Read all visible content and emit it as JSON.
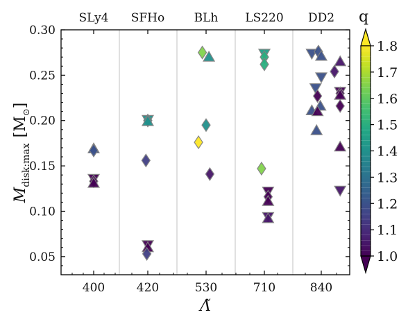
{
  "chart_data": {
    "type": "scatter",
    "top_labels": [
      "SLy4",
      "SFHo",
      "BLh",
      "LS220",
      "DD2"
    ],
    "xtick_labels": [
      "400",
      "420",
      "530",
      "710",
      "840"
    ],
    "xlabel": "Λ̃",
    "ylabel_main": "M",
    "ylabel_sub": "disk:max",
    "ylabel_unit_open": "[M",
    "ylabel_unit_sub": "⊙",
    "ylabel_unit_close": "]",
    "ylim": [
      0.03,
      0.3
    ],
    "yticks": [
      "0.05",
      "0.10",
      "0.15",
      "0.20",
      "0.25",
      "0.30"
    ],
    "colorbar": {
      "label": "q",
      "range": [
        1.0,
        1.8
      ],
      "ticks": [
        "1.0",
        "1.1",
        "1.2",
        "1.3",
        "1.4",
        "1.5",
        "1.6",
        "1.7",
        "1.8"
      ],
      "colormap": "viridis",
      "extend": "both"
    },
    "grid": false,
    "points": [
      {
        "eos": "SLy4",
        "offset": 0.0,
        "y": 0.169,
        "q": 1.2,
        "marker": "triangle-up"
      },
      {
        "eos": "SLy4",
        "offset": 0.0,
        "y": 0.167,
        "q": 1.2,
        "marker": "diamond"
      },
      {
        "eos": "SLy4",
        "offset": 0.0,
        "y": 0.136,
        "q": 1.0,
        "marker": "triangle-down"
      },
      {
        "eos": "SLy4",
        "offset": 0.0,
        "y": 0.133,
        "q": 1.0,
        "marker": "diamond"
      },
      {
        "eos": "SLy4",
        "offset": 0.0,
        "y": 0.131,
        "q": 1.0,
        "marker": "triangle-up"
      },
      {
        "eos": "SFHo",
        "offset": 0.0,
        "y": 0.201,
        "q": 1.4,
        "marker": "triangle-down"
      },
      {
        "eos": "SFHo",
        "offset": 0.0,
        "y": 0.2,
        "q": 1.4,
        "marker": "diamond"
      },
      {
        "eos": "SFHo",
        "offset": 0.0,
        "y": 0.199,
        "q": 1.4,
        "marker": "triangle-up"
      },
      {
        "eos": "SFHo",
        "offset": -0.1,
        "y": 0.156,
        "q": 1.15,
        "marker": "diamond"
      },
      {
        "eos": "SFHo",
        "offset": 0.0,
        "y": 0.063,
        "q": 1.0,
        "marker": "triangle-down"
      },
      {
        "eos": "SFHo",
        "offset": 0.0,
        "y": 0.06,
        "q": 1.0,
        "marker": "triangle-up"
      },
      {
        "eos": "SFHo",
        "offset": -0.05,
        "y": 0.053,
        "q": 1.15,
        "marker": "diamond"
      },
      {
        "eos": "BLh",
        "offset": -0.2,
        "y": 0.275,
        "q": 1.65,
        "marker": "diamond"
      },
      {
        "eos": "BLh",
        "offset": 0.15,
        "y": 0.27,
        "q": 1.4,
        "marker": "triangle-up"
      },
      {
        "eos": "BLh",
        "offset": 0.0,
        "y": 0.195,
        "q": 1.4,
        "marker": "diamond"
      },
      {
        "eos": "BLh",
        "offset": -0.4,
        "y": 0.176,
        "q": 1.8,
        "marker": "diamond"
      },
      {
        "eos": "BLh",
        "offset": 0.2,
        "y": 0.141,
        "q": 1.05,
        "marker": "diamond"
      },
      {
        "eos": "LS220",
        "offset": 0.0,
        "y": 0.274,
        "q": 1.45,
        "marker": "triangle-down"
      },
      {
        "eos": "LS220",
        "offset": 0.0,
        "y": 0.27,
        "q": 1.5,
        "marker": "diamond"
      },
      {
        "eos": "LS220",
        "offset": 0.0,
        "y": 0.262,
        "q": 1.5,
        "marker": "diamond"
      },
      {
        "eos": "LS220",
        "offset": -0.15,
        "y": 0.147,
        "q": 1.65,
        "marker": "diamond"
      },
      {
        "eos": "LS220",
        "offset": 0.2,
        "y": 0.122,
        "q": 1.0,
        "marker": "triangle-down"
      },
      {
        "eos": "LS220",
        "offset": 0.2,
        "y": 0.116,
        "q": 1.0,
        "marker": "diamond"
      },
      {
        "eos": "LS220",
        "offset": 0.2,
        "y": 0.111,
        "q": 1.0,
        "marker": "triangle-up"
      },
      {
        "eos": "LS220",
        "offset": 0.2,
        "y": 0.094,
        "q": 1.05,
        "marker": "triangle-down"
      },
      {
        "eos": "LS220",
        "offset": 0.2,
        "y": 0.092,
        "q": 1.05,
        "marker": "triangle-up"
      },
      {
        "eos": "DD2",
        "offset": -0.5,
        "y": 0.274,
        "q": 1.2,
        "marker": "triangle-down"
      },
      {
        "eos": "DD2",
        "offset": -0.15,
        "y": 0.276,
        "q": 1.2,
        "marker": "diamond"
      },
      {
        "eos": "DD2",
        "offset": 0.0,
        "y": 0.271,
        "q": 1.2,
        "marker": "triangle-up"
      },
      {
        "eos": "DD2",
        "offset": 0.0,
        "y": 0.248,
        "q": 1.2,
        "marker": "triangle-down"
      },
      {
        "eos": "DD2",
        "offset": -0.3,
        "y": 0.236,
        "q": 1.2,
        "marker": "triangle-down"
      },
      {
        "eos": "DD2",
        "offset": -0.2,
        "y": 0.227,
        "q": 1.0,
        "marker": "diamond"
      },
      {
        "eos": "DD2",
        "offset": -0.05,
        "y": 0.216,
        "q": 1.2,
        "marker": "triangle-up"
      },
      {
        "eos": "DD2",
        "offset": -0.5,
        "y": 0.211,
        "q": 1.2,
        "marker": "triangle-up"
      },
      {
        "eos": "DD2",
        "offset": -0.2,
        "y": 0.21,
        "q": 1.0,
        "marker": "triangle-up"
      },
      {
        "eos": "DD2",
        "offset": -0.25,
        "y": 0.189,
        "q": 1.2,
        "marker": "triangle-up"
      },
      {
        "eos": "DD2",
        "offset": 0.7,
        "y": 0.254,
        "q": 1.05,
        "marker": "diamond"
      },
      {
        "eos": "DD2",
        "offset": 1.0,
        "y": 0.265,
        "q": 1.05,
        "marker": "triangle-up"
      },
      {
        "eos": "DD2",
        "offset": 1.0,
        "y": 0.232,
        "q": 1.0,
        "marker": "triangle-down"
      },
      {
        "eos": "DD2",
        "offset": 1.0,
        "y": 0.23,
        "q": 1.0,
        "marker": "diamond"
      },
      {
        "eos": "DD2",
        "offset": 1.0,
        "y": 0.228,
        "q": 1.0,
        "marker": "triangle-up"
      },
      {
        "eos": "DD2",
        "offset": 1.0,
        "y": 0.216,
        "q": 1.0,
        "marker": "diamond"
      },
      {
        "eos": "DD2",
        "offset": 1.0,
        "y": 0.171,
        "q": 1.0,
        "marker": "triangle-up"
      },
      {
        "eos": "DD2",
        "offset": 1.0,
        "y": 0.123,
        "q": 1.05,
        "marker": "triangle-down"
      }
    ]
  }
}
